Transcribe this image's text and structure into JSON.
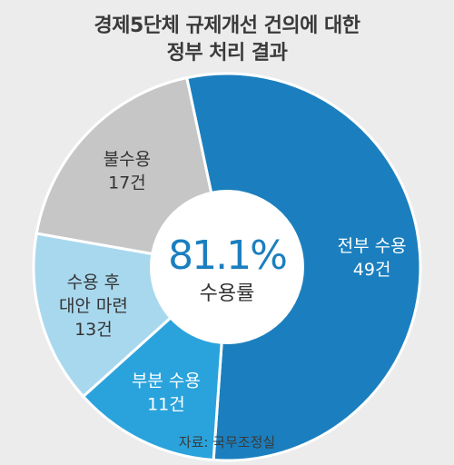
{
  "title_line1": "경제5단체 규제개선 건의에 대한",
  "title_line2": "정부 처리 결과",
  "source": "자료: 국무조정실",
  "chart_data": {
    "type": "pie",
    "title": "경제5단체 규제개선 건의에 대한 정부 처리 결과",
    "center_value": "81.1%",
    "center_label": "수용률",
    "unit": "건",
    "slices": [
      {
        "label": "전부 수용",
        "value": 49,
        "value_text": "49건",
        "color": "#1b7fbf"
      },
      {
        "label": "부분 수용",
        "value": 11,
        "value_text": "11건",
        "color": "#2aa3dc"
      },
      {
        "label": "수용 후 대안 마련",
        "value": 13,
        "value_text": "13건",
        "color": "#a8d8ee"
      },
      {
        "label": "불수용",
        "value": 17,
        "value_text": "17건",
        "color": "#c6c6c6"
      }
    ]
  }
}
